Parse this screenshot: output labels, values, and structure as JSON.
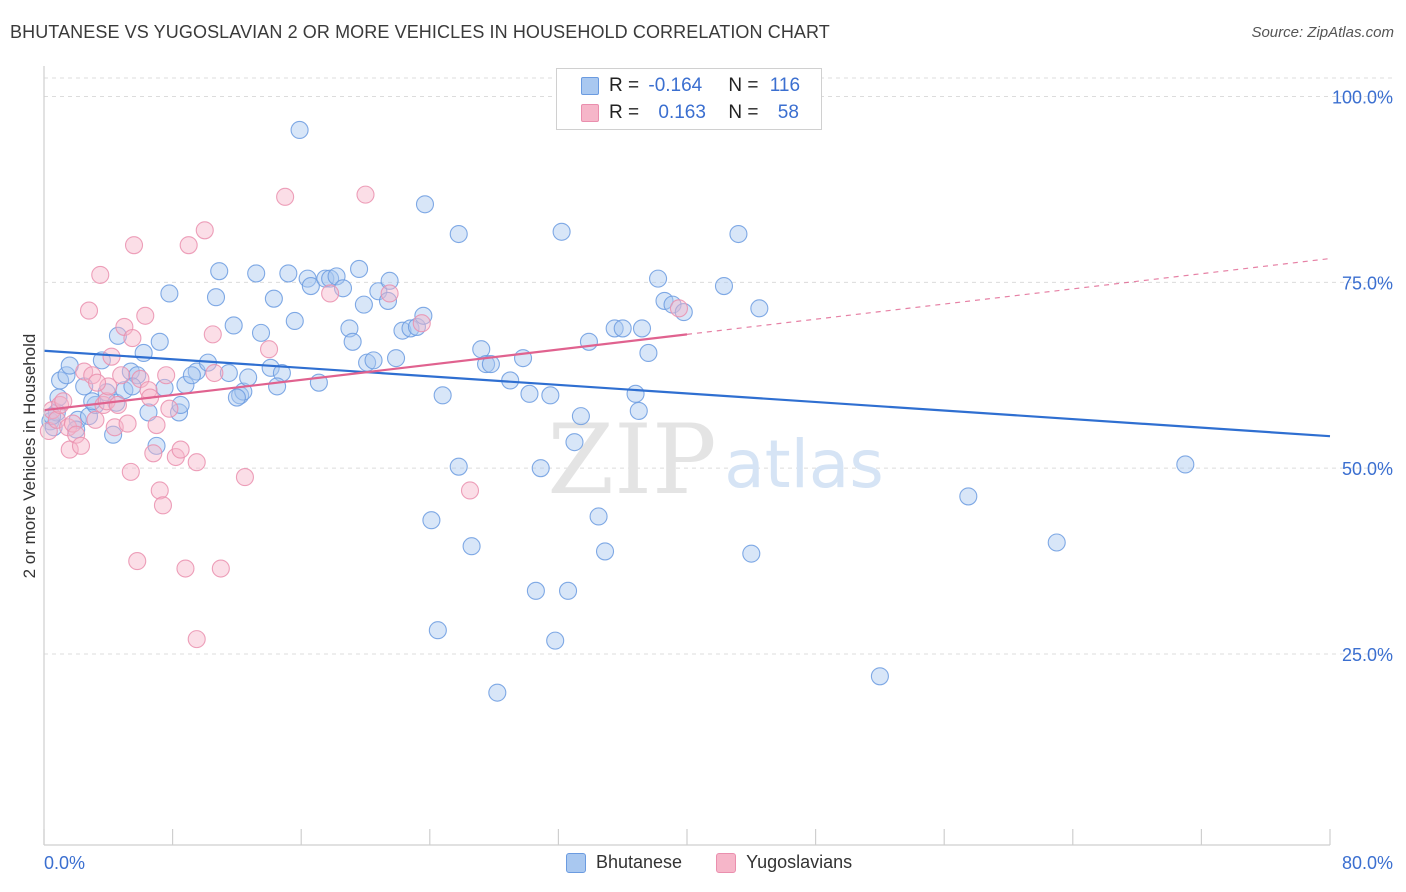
{
  "title": "BHUTANESE VS YUGOSLAVIAN 2 OR MORE VEHICLES IN HOUSEHOLD CORRELATION CHART",
  "source": "Source: ZipAtlas.com",
  "watermark": {
    "zip": "ZIP",
    "atlas": "atlas"
  },
  "legend_top": {
    "rows": [
      {
        "r_label": "R = ",
        "r_value": "-0.164",
        "n_label": "N = ",
        "n_value": "116"
      },
      {
        "r_label": "R = ",
        "r_value": "0.163",
        "n_label": "N = ",
        "n_value": "58"
      }
    ]
  },
  "legend_bottom": {
    "items": [
      {
        "label": "Bhutanese"
      },
      {
        "label": "Yugoslavians"
      }
    ]
  },
  "colors": {
    "blue_fill": "#a9c8f0",
    "blue_stroke": "#6b9be0",
    "blue_line": "#2f6fd1",
    "pink_fill": "#f6b6c9",
    "pink_stroke": "#ea8fae",
    "pink_line": "#e0628f",
    "grid": "#dcdcdc",
    "tick_label": "#3b6fd0"
  },
  "chart_data": {
    "type": "scatter",
    "title": "BHUTANESE VS YUGOSLAVIAN 2 OR MORE VEHICLES IN HOUSEHOLD CORRELATION CHART",
    "xlabel": "",
    "ylabel": "2 or more Vehicles in Household",
    "xlim": [
      0,
      80
    ],
    "ylim": [
      0,
      100
    ],
    "x_tick_labels": [
      "0.0%",
      "80.0%"
    ],
    "y_ticks": [
      25,
      50,
      75,
      100
    ],
    "y_tick_labels": [
      "25.0%",
      "50.0%",
      "75.0%",
      "100.0%"
    ],
    "grid": true,
    "legend_position": "top-center",
    "series": [
      {
        "name": "Bhutanese",
        "r": -0.164,
        "n": 116,
        "trend": {
          "x": [
            0,
            80
          ],
          "y": [
            65.8,
            54.3
          ],
          "dashed_after": null
        },
        "points": [
          [
            0.4,
            56.3
          ],
          [
            0.6,
            55.5
          ],
          [
            0.8,
            57.5
          ],
          [
            1.0,
            61.8
          ],
          [
            0.9,
            59.5
          ],
          [
            1.4,
            62.5
          ],
          [
            1.6,
            63.8
          ],
          [
            2.1,
            56.5
          ],
          [
            2.0,
            55.2
          ],
          [
            2.5,
            61.0
          ],
          [
            2.8,
            57.0
          ],
          [
            3.2,
            58.5
          ],
          [
            3.6,
            64.5
          ],
          [
            3.9,
            60.2
          ],
          [
            4.3,
            54.5
          ],
          [
            4.5,
            58.8
          ],
          [
            4.6,
            67.8
          ],
          [
            5.0,
            60.5
          ],
          [
            5.4,
            63.0
          ],
          [
            5.8,
            62.5
          ],
          [
            6.2,
            65.5
          ],
          [
            6.5,
            57.5
          ],
          [
            7.0,
            53.0
          ],
          [
            7.2,
            67.0
          ],
          [
            7.5,
            60.8
          ],
          [
            7.8,
            73.5
          ],
          [
            8.4,
            57.5
          ],
          [
            8.5,
            58.5
          ],
          [
            8.8,
            61.2
          ],
          [
            9.5,
            63.0
          ],
          [
            10.2,
            64.2
          ],
          [
            10.7,
            73.0
          ],
          [
            10.9,
            76.5
          ],
          [
            11.5,
            62.8
          ],
          [
            11.8,
            69.2
          ],
          [
            12.2,
            59.8
          ],
          [
            12.4,
            60.3
          ],
          [
            12.7,
            62.2
          ],
          [
            13.2,
            76.2
          ],
          [
            13.5,
            68.2
          ],
          [
            14.1,
            63.5
          ],
          [
            14.3,
            72.8
          ],
          [
            14.8,
            62.8
          ],
          [
            15.2,
            76.2
          ],
          [
            15.6,
            69.8
          ],
          [
            15.9,
            95.5
          ],
          [
            16.4,
            75.5
          ],
          [
            16.6,
            74.5
          ],
          [
            17.1,
            61.5
          ],
          [
            17.5,
            75.5
          ],
          [
            17.8,
            75.5
          ],
          [
            18.2,
            75.8
          ],
          [
            18.6,
            74.2
          ],
          [
            19.0,
            68.8
          ],
          [
            19.2,
            67.0
          ],
          [
            19.6,
            76.8
          ],
          [
            19.9,
            72.0
          ],
          [
            20.1,
            64.2
          ],
          [
            20.5,
            64.5
          ],
          [
            20.8,
            73.8
          ],
          [
            21.4,
            72.5
          ],
          [
            21.5,
            75.2
          ],
          [
            21.9,
            64.8
          ],
          [
            22.3,
            68.5
          ],
          [
            22.8,
            68.8
          ],
          [
            23.2,
            69.0
          ],
          [
            23.6,
            70.5
          ],
          [
            23.7,
            85.5
          ],
          [
            24.1,
            43.0
          ],
          [
            24.5,
            28.2
          ],
          [
            24.8,
            59.8
          ],
          [
            25.8,
            81.5
          ],
          [
            25.8,
            50.2
          ],
          [
            26.6,
            39.5
          ],
          [
            27.2,
            66.0
          ],
          [
            27.5,
            64.0
          ],
          [
            27.8,
            64.0
          ],
          [
            28.2,
            19.8
          ],
          [
            29.0,
            61.8
          ],
          [
            29.8,
            64.8
          ],
          [
            30.2,
            60.0
          ],
          [
            30.6,
            33.5
          ],
          [
            30.9,
            50.0
          ],
          [
            31.5,
            59.8
          ],
          [
            31.8,
            26.8
          ],
          [
            32.2,
            81.8
          ],
          [
            32.6,
            33.5
          ],
          [
            33.0,
            53.5
          ],
          [
            33.4,
            57.0
          ],
          [
            33.9,
            67.0
          ],
          [
            34.5,
            43.5
          ],
          [
            34.9,
            38.8
          ],
          [
            35.5,
            68.8
          ],
          [
            36.0,
            68.8
          ],
          [
            36.8,
            60.0
          ],
          [
            37.0,
            57.7
          ],
          [
            37.2,
            68.8
          ],
          [
            37.6,
            65.5
          ],
          [
            38.2,
            75.5
          ],
          [
            38.6,
            72.5
          ],
          [
            39.1,
            72.0
          ],
          [
            39.8,
            71.0
          ],
          [
            42.3,
            74.5
          ],
          [
            43.2,
            81.5
          ],
          [
            44.5,
            71.5
          ],
          [
            44.0,
            38.5
          ],
          [
            52.0,
            22.0
          ],
          [
            57.5,
            46.2
          ],
          [
            63.0,
            40.0
          ],
          [
            71.0,
            50.5
          ],
          [
            3.0,
            59.0
          ],
          [
            5.5,
            61.0
          ],
          [
            9.2,
            62.5
          ],
          [
            12.0,
            59.5
          ],
          [
            14.5,
            61.0
          ],
          [
            0.5,
            57.0
          ]
        ]
      },
      {
        "name": "Yugoslavians",
        "r": 0.163,
        "n": 58,
        "trend": {
          "x": [
            0,
            40,
            80
          ],
          "y": [
            57.8,
            68.0,
            78.2
          ],
          "dashed_after": 40
        },
        "points": [
          [
            0.3,
            55.0
          ],
          [
            0.5,
            57.8
          ],
          [
            0.8,
            56.5
          ],
          [
            1.0,
            58.5
          ],
          [
            1.2,
            59.0
          ],
          [
            1.5,
            55.5
          ],
          [
            1.6,
            52.5
          ],
          [
            1.8,
            56.0
          ],
          [
            2.0,
            54.5
          ],
          [
            2.3,
            53.0
          ],
          [
            2.5,
            63.0
          ],
          [
            2.8,
            71.2
          ],
          [
            3.0,
            62.5
          ],
          [
            3.2,
            56.5
          ],
          [
            3.5,
            76.0
          ],
          [
            3.7,
            58.5
          ],
          [
            3.9,
            59.0
          ],
          [
            4.0,
            61.0
          ],
          [
            4.2,
            65.0
          ],
          [
            4.4,
            55.5
          ],
          [
            4.6,
            58.5
          ],
          [
            4.8,
            62.5
          ],
          [
            5.0,
            69.0
          ],
          [
            5.2,
            56.0
          ],
          [
            5.4,
            49.5
          ],
          [
            5.5,
            67.5
          ],
          [
            5.6,
            80.0
          ],
          [
            5.8,
            37.5
          ],
          [
            6.0,
            62.0
          ],
          [
            6.3,
            70.5
          ],
          [
            6.5,
            60.5
          ],
          [
            6.8,
            52.0
          ],
          [
            7.0,
            55.8
          ],
          [
            7.2,
            47.0
          ],
          [
            7.4,
            45.0
          ],
          [
            7.6,
            62.5
          ],
          [
            7.8,
            58.0
          ],
          [
            8.2,
            51.5
          ],
          [
            8.5,
            52.5
          ],
          [
            8.8,
            36.5
          ],
          [
            9.0,
            80.0
          ],
          [
            9.5,
            50.8
          ],
          [
            9.5,
            27.0
          ],
          [
            10.0,
            82.0
          ],
          [
            10.5,
            68.0
          ],
          [
            10.6,
            62.8
          ],
          [
            11.0,
            36.5
          ],
          [
            12.5,
            48.8
          ],
          [
            14.0,
            66.0
          ],
          [
            15.0,
            86.5
          ],
          [
            17.8,
            73.5
          ],
          [
            20.0,
            86.8
          ],
          [
            21.5,
            73.5
          ],
          [
            23.5,
            69.5
          ],
          [
            26.5,
            47.0
          ],
          [
            39.5,
            71.5
          ],
          [
            3.3,
            61.5
          ],
          [
            6.6,
            59.5
          ]
        ]
      }
    ]
  }
}
